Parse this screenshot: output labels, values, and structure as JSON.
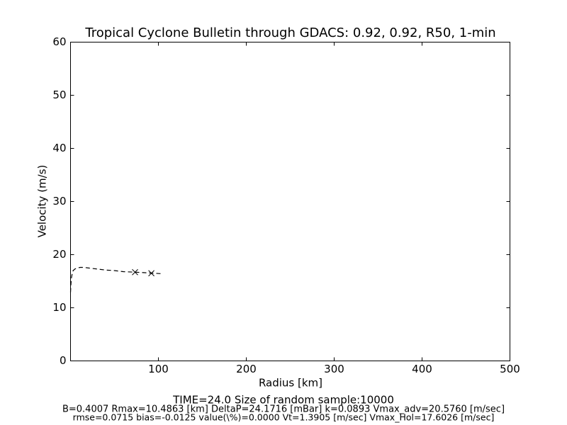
{
  "chart_data": {
    "type": "line",
    "title": "Tropical Cyclone Bulletin through GDACS: 0.92, 0.92, R50, 1-min",
    "x_label": "Radius [km]",
    "y_label": "Velocity (m/s)",
    "x": [
      0,
      0.5,
      1,
      2,
      3,
      5,
      8,
      11,
      15,
      20,
      30,
      40,
      50,
      60,
      73,
      85,
      95,
      105
    ],
    "values": [
      12.9,
      14.5,
      15.6,
      16.5,
      17.0,
      17.3,
      17.5,
      17.6,
      17.6,
      17.5,
      17.3,
      17.1,
      17.0,
      16.8,
      16.7,
      16.6,
      16.5,
      16.4
    ],
    "color": "#000000",
    "dashed": true,
    "markers": {
      "x": [
        73.4,
        92
      ],
      "values": [
        16.7,
        16.5
      ],
      "color": "#000000"
    },
    "xlim": [
      0,
      500
    ],
    "xticks": [
      100,
      200,
      300,
      400,
      500
    ],
    "ylim": [
      0,
      60
    ],
    "yticks": [
      0,
      10,
      20,
      30,
      40,
      50,
      60
    ],
    "annotations": [
      "TIME=24.0     Size of random sample:10000",
      "B=0.4007 Rmax=10.4863 [km]  DeltaP=24.1716 [mBar] k=0.0893 Vmax_adv=20.5760 [m/sec]",
      "rmse=0.0715 bias=-0.0125 value(\\%)=0.0000 Vt=1.3905 [m/sec] Vmax_Hol=17.6026 [m/sec]"
    ]
  }
}
